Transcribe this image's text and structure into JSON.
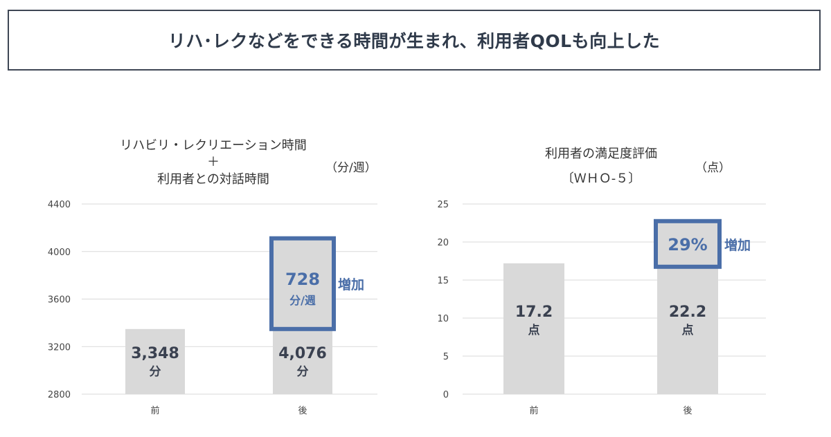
{
  "header": {
    "title": "リハ･レクなどをできる時間が生まれ、利用者QOLも向上した"
  },
  "chart_data": [
    {
      "type": "bar",
      "title_lines": [
        "リハビリ・レクリエーション時間",
        "＋",
        "利用者との対話時間"
      ],
      "unit_label": "（分/週）",
      "categories": [
        "前",
        "後"
      ],
      "values": [
        3348,
        4076
      ],
      "ylim": [
        2800,
        4400
      ],
      "yticks": [
        2800,
        3200,
        3600,
        4000,
        4400
      ],
      "grid": true,
      "bar_labels": [
        {
          "value": "3,348",
          "unit": "分"
        },
        {
          "value": "4,076",
          "unit": "分"
        }
      ],
      "increase": {
        "value": 728,
        "value_label": "728",
        "unit_label": "分/週",
        "label": "増加",
        "from": 3348,
        "to": 4076,
        "top": 4076
      }
    },
    {
      "type": "bar",
      "title_lines": [
        "利用者の満足度評価",
        "〔ＷＨＯ-５〕"
      ],
      "unit_label": "（点）",
      "categories": [
        "前",
        "後"
      ],
      "values": [
        17.2,
        22.2
      ],
      "ylim": [
        0,
        25
      ],
      "yticks": [
        0,
        5,
        10,
        15,
        20,
        25
      ],
      "grid": true,
      "bar_labels": [
        {
          "value": "17.2",
          "unit": "点"
        },
        {
          "value": "22.2",
          "unit": "点"
        }
      ],
      "increase": {
        "value": 29,
        "value_label": "29%",
        "unit_label": "",
        "label": "増加",
        "from": 17.2,
        "to": 22.2,
        "top": 22.2
      }
    }
  ],
  "colors": {
    "bar": "#d9d9d9",
    "highlight": "#4a6ea8",
    "highlight_fill": "#d9d9d9",
    "text": "#3a4150",
    "grid": "#d9d9d9"
  }
}
